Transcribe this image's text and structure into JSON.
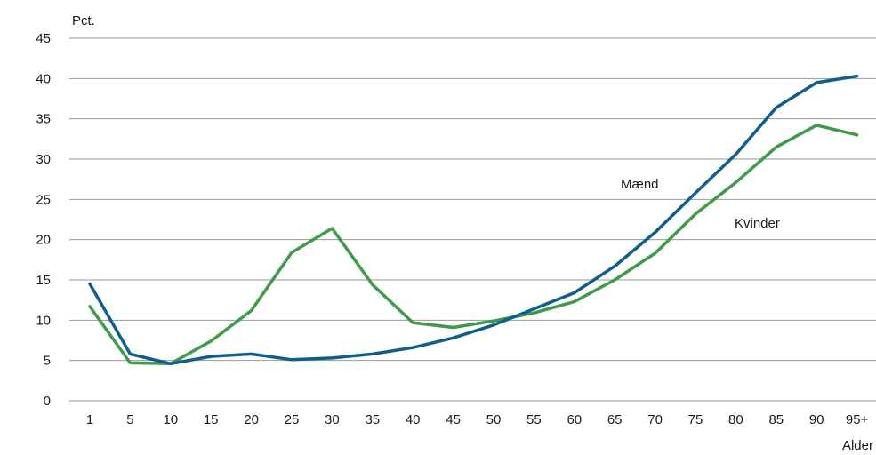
{
  "chart_data": {
    "type": "line",
    "ylabel": "Pct.",
    "xlabel": "Alder",
    "ylim": [
      0,
      45
    ],
    "yticks": [
      0,
      5,
      10,
      15,
      20,
      25,
      30,
      35,
      40,
      45
    ],
    "categories": [
      "1",
      "5",
      "10",
      "15",
      "20",
      "25",
      "30",
      "35",
      "40",
      "45",
      "50",
      "55",
      "60",
      "65",
      "70",
      "75",
      "80",
      "85",
      "90",
      "95+"
    ],
    "grid": true,
    "series": [
      {
        "name": "Mænd",
        "color": "#0f5e8e",
        "values": [
          14.5,
          5.8,
          4.6,
          5.5,
          5.8,
          5.1,
          5.3,
          5.8,
          6.6,
          7.8,
          9.4,
          11.4,
          13.4,
          16.7,
          20.9,
          25.8,
          30.6,
          36.4,
          39.5,
          40.3
        ]
      },
      {
        "name": "Kvinder",
        "color": "#3f9a4a",
        "values": [
          11.7,
          4.7,
          4.6,
          7.4,
          11.2,
          18.4,
          21.4,
          14.4,
          9.7,
          9.1,
          9.9,
          10.9,
          12.3,
          15.0,
          18.3,
          23.2,
          27.1,
          31.5,
          34.2,
          33.0
        ]
      }
    ]
  }
}
